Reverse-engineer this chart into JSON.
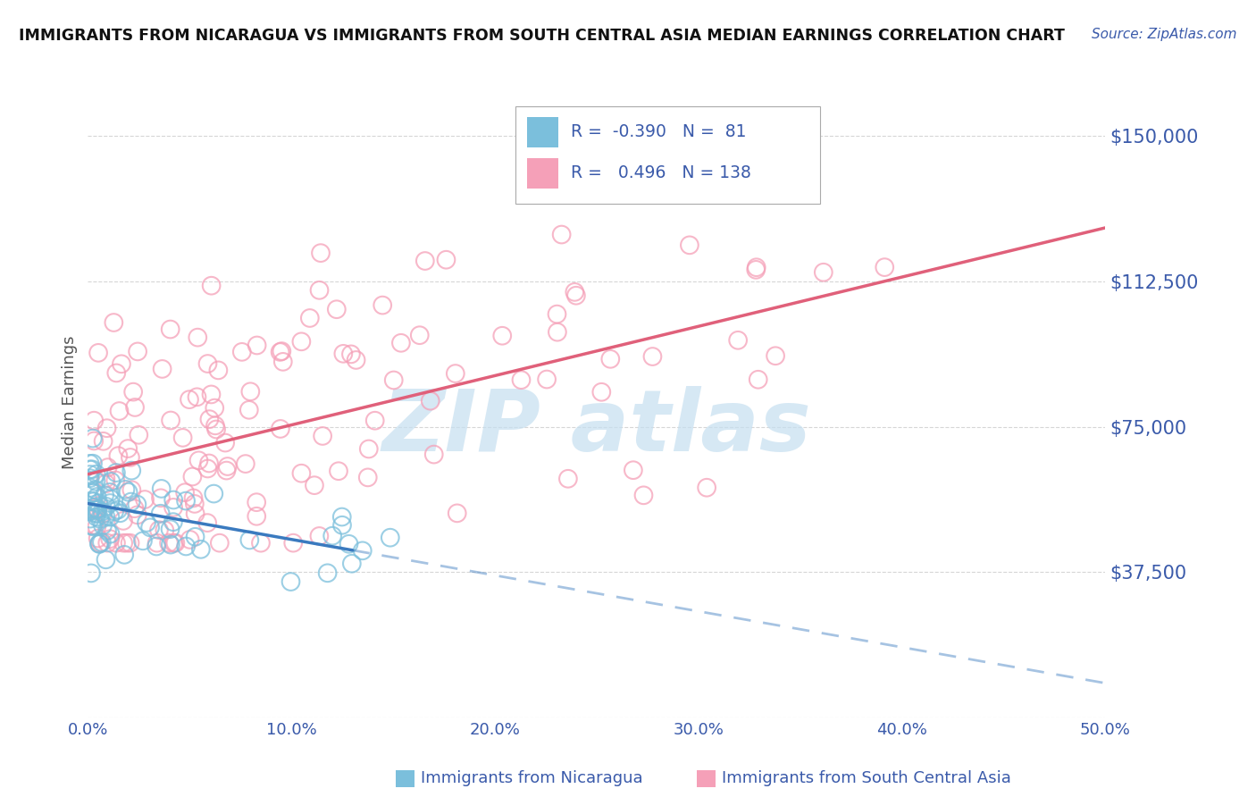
{
  "title": "IMMIGRANTS FROM NICARAGUA VS IMMIGRANTS FROM SOUTH CENTRAL ASIA MEDIAN EARNINGS CORRELATION CHART",
  "source": "Source: ZipAtlas.com",
  "ylabel": "Median Earnings",
  "x_min": 0.0,
  "x_max": 0.5,
  "y_min": 0,
  "y_max": 162500,
  "yticks": [
    0,
    37500,
    75000,
    112500,
    150000
  ],
  "ytick_labels": [
    "",
    "$37,500",
    "$75,000",
    "$112,500",
    "$150,000"
  ],
  "xticks": [
    0.0,
    0.1,
    0.2,
    0.3,
    0.4,
    0.5
  ],
  "xtick_labels": [
    "0.0%",
    "10.0%",
    "20.0%",
    "30.0%",
    "40.0%",
    "50.0%"
  ],
  "blue_color": "#7bbfdc",
  "pink_color": "#f5a0b8",
  "blue_line_color": "#3a7abf",
  "pink_line_color": "#e0607a",
  "axis_color": "#3a5aaa",
  "legend_R1": "-0.390",
  "legend_N1": "81",
  "legend_R2": "0.496",
  "legend_N2": "138",
  "legend_label1": "Immigrants from Nicaragua",
  "legend_label2": "Immigrants from South Central Asia",
  "watermark_text": "ZIP atlas",
  "watermark_color": "#c5dff0",
  "grid_color": "#cccccc",
  "background_color": "#ffffff"
}
